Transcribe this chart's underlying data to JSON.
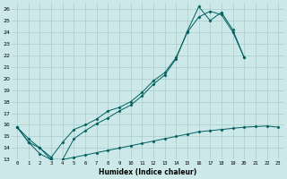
{
  "xlabel": "Humidex (Indice chaleur)",
  "bg_color": "#cce8e8",
  "line_color": "#006060",
  "grid_color": "#aacccc",
  "xlim": [
    -0.5,
    23.5
  ],
  "ylim": [
    13,
    26.5
  ],
  "yticks": [
    13,
    14,
    15,
    16,
    17,
    18,
    19,
    20,
    21,
    22,
    23,
    24,
    25,
    26
  ],
  "xticks": [
    0,
    1,
    2,
    3,
    4,
    5,
    6,
    7,
    8,
    9,
    10,
    11,
    12,
    13,
    14,
    15,
    16,
    17,
    18,
    19,
    20,
    21,
    22,
    23
  ],
  "xtick_labels": [
    "0",
    "1",
    "2",
    "3",
    "4",
    "5",
    "6",
    "7",
    "8",
    "9",
    "10",
    "11",
    "12",
    "13",
    "14",
    "15",
    "16",
    "17",
    "18",
    "19",
    "20",
    "21",
    "22",
    "23"
  ],
  "line1_x": [
    0,
    1,
    2,
    3,
    4,
    5,
    6,
    7,
    8,
    9,
    10,
    11,
    12,
    13,
    14,
    15,
    16,
    17,
    18,
    19,
    20
  ],
  "line1_y": [
    15.8,
    14.8,
    14.0,
    13.0,
    13.0,
    14.8,
    15.5,
    16.1,
    16.6,
    17.2,
    17.7,
    18.5,
    19.5,
    20.3,
    21.7,
    24.1,
    26.2,
    25.0,
    25.7,
    24.2,
    21.8
  ],
  "line2_x": [
    0,
    1,
    2,
    3,
    4,
    5,
    6,
    7,
    8,
    9,
    10,
    11,
    12,
    13,
    14,
    15,
    16,
    17,
    18,
    19,
    20
  ],
  "line2_y": [
    15.8,
    14.5,
    14.0,
    13.2,
    14.5,
    15.6,
    16.0,
    16.5,
    17.2,
    17.5,
    18.0,
    18.8,
    19.8,
    20.5,
    21.8,
    24.0,
    25.3,
    25.8,
    25.5,
    24.0,
    21.8
  ],
  "line3_x": [
    0,
    1,
    2,
    3,
    4,
    5,
    6,
    7,
    8,
    9,
    10,
    11,
    12,
    13,
    14,
    15,
    16,
    17,
    18,
    19,
    20,
    21,
    22,
    23
  ],
  "line3_y": [
    15.8,
    14.5,
    13.5,
    13.0,
    13.0,
    13.2,
    13.4,
    13.6,
    13.8,
    14.0,
    14.2,
    14.4,
    14.6,
    14.8,
    15.0,
    15.2,
    15.4,
    15.5,
    15.6,
    15.7,
    15.8,
    15.85,
    15.9,
    15.8
  ]
}
